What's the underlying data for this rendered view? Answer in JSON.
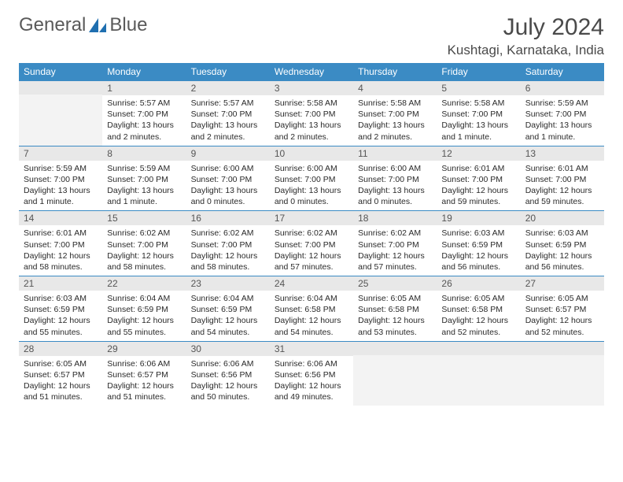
{
  "logo": {
    "text1": "General",
    "text2": "Blue"
  },
  "title": "July 2024",
  "location": "Kushtagi, Karnataka, India",
  "styling": {
    "header_bg": "#3b8bc4",
    "header_fg": "#ffffff",
    "daynum_bg": "#e8e8e8",
    "empty_bg": "#f3f3f3",
    "border_color": "#3b8bc4",
    "text_color": "#2a2a2a",
    "title_color": "#4a4a4a",
    "month_fontsize": 30,
    "location_fontsize": 17,
    "header_fontsize": 12,
    "daynum_fontsize": 12,
    "body_fontsize": 10.5
  },
  "weekdays": [
    "Sunday",
    "Monday",
    "Tuesday",
    "Wednesday",
    "Thursday",
    "Friday",
    "Saturday"
  ],
  "weeks": [
    [
      {
        "n": "",
        "lines": []
      },
      {
        "n": "1",
        "lines": [
          "Sunrise: 5:57 AM",
          "Sunset: 7:00 PM",
          "Daylight: 13 hours",
          "and 2 minutes."
        ]
      },
      {
        "n": "2",
        "lines": [
          "Sunrise: 5:57 AM",
          "Sunset: 7:00 PM",
          "Daylight: 13 hours",
          "and 2 minutes."
        ]
      },
      {
        "n": "3",
        "lines": [
          "Sunrise: 5:58 AM",
          "Sunset: 7:00 PM",
          "Daylight: 13 hours",
          "and 2 minutes."
        ]
      },
      {
        "n": "4",
        "lines": [
          "Sunrise: 5:58 AM",
          "Sunset: 7:00 PM",
          "Daylight: 13 hours",
          "and 2 minutes."
        ]
      },
      {
        "n": "5",
        "lines": [
          "Sunrise: 5:58 AM",
          "Sunset: 7:00 PM",
          "Daylight: 13 hours",
          "and 1 minute."
        ]
      },
      {
        "n": "6",
        "lines": [
          "Sunrise: 5:59 AM",
          "Sunset: 7:00 PM",
          "Daylight: 13 hours",
          "and 1 minute."
        ]
      }
    ],
    [
      {
        "n": "7",
        "lines": [
          "Sunrise: 5:59 AM",
          "Sunset: 7:00 PM",
          "Daylight: 13 hours",
          "and 1 minute."
        ]
      },
      {
        "n": "8",
        "lines": [
          "Sunrise: 5:59 AM",
          "Sunset: 7:00 PM",
          "Daylight: 13 hours",
          "and 1 minute."
        ]
      },
      {
        "n": "9",
        "lines": [
          "Sunrise: 6:00 AM",
          "Sunset: 7:00 PM",
          "Daylight: 13 hours",
          "and 0 minutes."
        ]
      },
      {
        "n": "10",
        "lines": [
          "Sunrise: 6:00 AM",
          "Sunset: 7:00 PM",
          "Daylight: 13 hours",
          "and 0 minutes."
        ]
      },
      {
        "n": "11",
        "lines": [
          "Sunrise: 6:00 AM",
          "Sunset: 7:00 PM",
          "Daylight: 13 hours",
          "and 0 minutes."
        ]
      },
      {
        "n": "12",
        "lines": [
          "Sunrise: 6:01 AM",
          "Sunset: 7:00 PM",
          "Daylight: 12 hours",
          "and 59 minutes."
        ]
      },
      {
        "n": "13",
        "lines": [
          "Sunrise: 6:01 AM",
          "Sunset: 7:00 PM",
          "Daylight: 12 hours",
          "and 59 minutes."
        ]
      }
    ],
    [
      {
        "n": "14",
        "lines": [
          "Sunrise: 6:01 AM",
          "Sunset: 7:00 PM",
          "Daylight: 12 hours",
          "and 58 minutes."
        ]
      },
      {
        "n": "15",
        "lines": [
          "Sunrise: 6:02 AM",
          "Sunset: 7:00 PM",
          "Daylight: 12 hours",
          "and 58 minutes."
        ]
      },
      {
        "n": "16",
        "lines": [
          "Sunrise: 6:02 AM",
          "Sunset: 7:00 PM",
          "Daylight: 12 hours",
          "and 58 minutes."
        ]
      },
      {
        "n": "17",
        "lines": [
          "Sunrise: 6:02 AM",
          "Sunset: 7:00 PM",
          "Daylight: 12 hours",
          "and 57 minutes."
        ]
      },
      {
        "n": "18",
        "lines": [
          "Sunrise: 6:02 AM",
          "Sunset: 7:00 PM",
          "Daylight: 12 hours",
          "and 57 minutes."
        ]
      },
      {
        "n": "19",
        "lines": [
          "Sunrise: 6:03 AM",
          "Sunset: 6:59 PM",
          "Daylight: 12 hours",
          "and 56 minutes."
        ]
      },
      {
        "n": "20",
        "lines": [
          "Sunrise: 6:03 AM",
          "Sunset: 6:59 PM",
          "Daylight: 12 hours",
          "and 56 minutes."
        ]
      }
    ],
    [
      {
        "n": "21",
        "lines": [
          "Sunrise: 6:03 AM",
          "Sunset: 6:59 PM",
          "Daylight: 12 hours",
          "and 55 minutes."
        ]
      },
      {
        "n": "22",
        "lines": [
          "Sunrise: 6:04 AM",
          "Sunset: 6:59 PM",
          "Daylight: 12 hours",
          "and 55 minutes."
        ]
      },
      {
        "n": "23",
        "lines": [
          "Sunrise: 6:04 AM",
          "Sunset: 6:59 PM",
          "Daylight: 12 hours",
          "and 54 minutes."
        ]
      },
      {
        "n": "24",
        "lines": [
          "Sunrise: 6:04 AM",
          "Sunset: 6:58 PM",
          "Daylight: 12 hours",
          "and 54 minutes."
        ]
      },
      {
        "n": "25",
        "lines": [
          "Sunrise: 6:05 AM",
          "Sunset: 6:58 PM",
          "Daylight: 12 hours",
          "and 53 minutes."
        ]
      },
      {
        "n": "26",
        "lines": [
          "Sunrise: 6:05 AM",
          "Sunset: 6:58 PM",
          "Daylight: 12 hours",
          "and 52 minutes."
        ]
      },
      {
        "n": "27",
        "lines": [
          "Sunrise: 6:05 AM",
          "Sunset: 6:57 PM",
          "Daylight: 12 hours",
          "and 52 minutes."
        ]
      }
    ],
    [
      {
        "n": "28",
        "lines": [
          "Sunrise: 6:05 AM",
          "Sunset: 6:57 PM",
          "Daylight: 12 hours",
          "and 51 minutes."
        ]
      },
      {
        "n": "29",
        "lines": [
          "Sunrise: 6:06 AM",
          "Sunset: 6:57 PM",
          "Daylight: 12 hours",
          "and 51 minutes."
        ]
      },
      {
        "n": "30",
        "lines": [
          "Sunrise: 6:06 AM",
          "Sunset: 6:56 PM",
          "Daylight: 12 hours",
          "and 50 minutes."
        ]
      },
      {
        "n": "31",
        "lines": [
          "Sunrise: 6:06 AM",
          "Sunset: 6:56 PM",
          "Daylight: 12 hours",
          "and 49 minutes."
        ]
      },
      {
        "n": "",
        "lines": []
      },
      {
        "n": "",
        "lines": []
      },
      {
        "n": "",
        "lines": []
      }
    ]
  ]
}
